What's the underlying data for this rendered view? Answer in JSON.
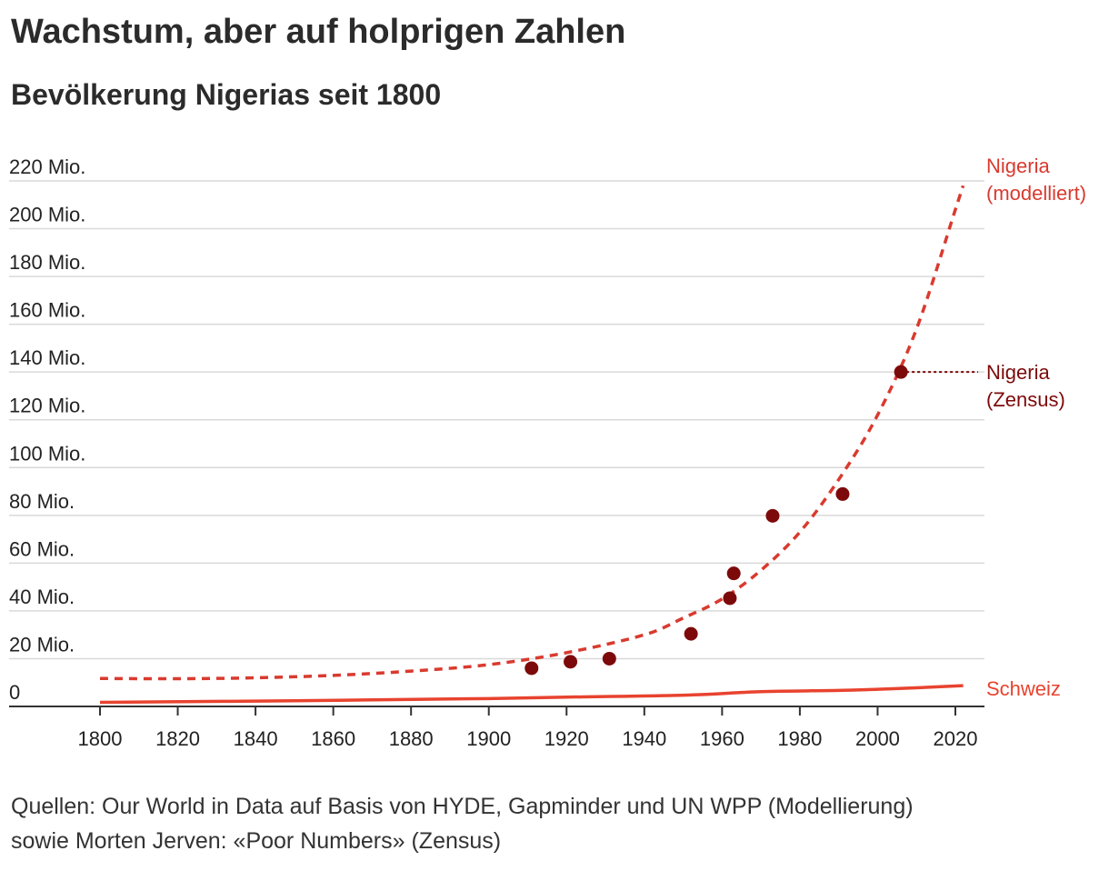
{
  "header": {
    "title": "Wachstum, aber auf holprigen Zahlen",
    "subtitle": "Bevölkerung Nigerias seit 1800"
  },
  "footer": {
    "source_line1": "Quellen: Our World in Data auf Basis von HYDE, Gapminder und UN WPP (Modellierung)",
    "source_line2": "sowie Morten Jerven: «Poor Numbers» (Zensus)"
  },
  "colors": {
    "nigeria_model": "#d93a2f",
    "nigeria_census": "#7d0a0a",
    "schweiz": "#e8432f",
    "grid": "#d9d9d9",
    "axis": "#333333"
  },
  "chart_data": {
    "type": "line",
    "title": "Wachstum, aber auf holprigen Zahlen",
    "subtitle": "Bevölkerung Nigerias seit 1800",
    "xlim": [
      1800,
      2022
    ],
    "ylim": [
      0,
      220
    ],
    "x_ticks": [
      1800,
      1820,
      1840,
      1860,
      1880,
      1900,
      1920,
      1940,
      1960,
      1980,
      2000,
      2020
    ],
    "y_ticks": [
      {
        "value": 0,
        "label": "0"
      },
      {
        "value": 20,
        "label": "20 Mio."
      },
      {
        "value": 40,
        "label": "40 Mio."
      },
      {
        "value": 60,
        "label": "60 Mio."
      },
      {
        "value": 80,
        "label": "80 Mio."
      },
      {
        "value": 100,
        "label": "100 Mio."
      },
      {
        "value": 120,
        "label": "120 Mio."
      },
      {
        "value": 140,
        "label": "140 Mio."
      },
      {
        "value": 160,
        "label": "160 Mio."
      },
      {
        "value": 180,
        "label": "180 Mio."
      },
      {
        "value": 200,
        "label": "200 Mio."
      },
      {
        "value": 220,
        "label": "220 Mio."
      }
    ],
    "grid": true,
    "series": [
      {
        "name": "Nigeria (modelliert)",
        "label_lines": [
          "Nigeria",
          "(modelliert)"
        ],
        "style": "dashed",
        "points": [
          [
            1800,
            11.7
          ],
          [
            1820,
            11.6
          ],
          [
            1840,
            12.0
          ],
          [
            1860,
            13.0
          ],
          [
            1880,
            14.8
          ],
          [
            1900,
            17.5
          ],
          [
            1920,
            22.5
          ],
          [
            1940,
            30.0
          ],
          [
            1950,
            37.0
          ],
          [
            1960,
            45.0
          ],
          [
            1970,
            57.0
          ],
          [
            1980,
            73.0
          ],
          [
            1990,
            95.0
          ],
          [
            2000,
            122.0
          ],
          [
            2010,
            158.0
          ],
          [
            2020,
            208.0
          ],
          [
            2022,
            218.0
          ]
        ]
      },
      {
        "name": "Nigeria (Zensus)",
        "label_lines": [
          "Nigeria",
          "(Zensus)"
        ],
        "style": "points",
        "points": [
          [
            1911,
            16.0
          ],
          [
            1921,
            18.7
          ],
          [
            1931,
            20.0
          ],
          [
            1952,
            30.4
          ],
          [
            1962,
            45.3
          ],
          [
            1963,
            55.7
          ],
          [
            1973,
            79.8
          ],
          [
            1991,
            88.9
          ],
          [
            2006,
            140.0
          ]
        ]
      },
      {
        "name": "Schweiz",
        "label_lines": [
          "Schweiz"
        ],
        "style": "solid",
        "points": [
          [
            1800,
            1.7
          ],
          [
            1850,
            2.4
          ],
          [
            1900,
            3.3
          ],
          [
            1920,
            3.9
          ],
          [
            1950,
            4.7
          ],
          [
            1970,
            6.2
          ],
          [
            1990,
            6.7
          ],
          [
            2000,
            7.2
          ],
          [
            2010,
            7.8
          ],
          [
            2022,
            8.7
          ]
        ]
      }
    ]
  }
}
